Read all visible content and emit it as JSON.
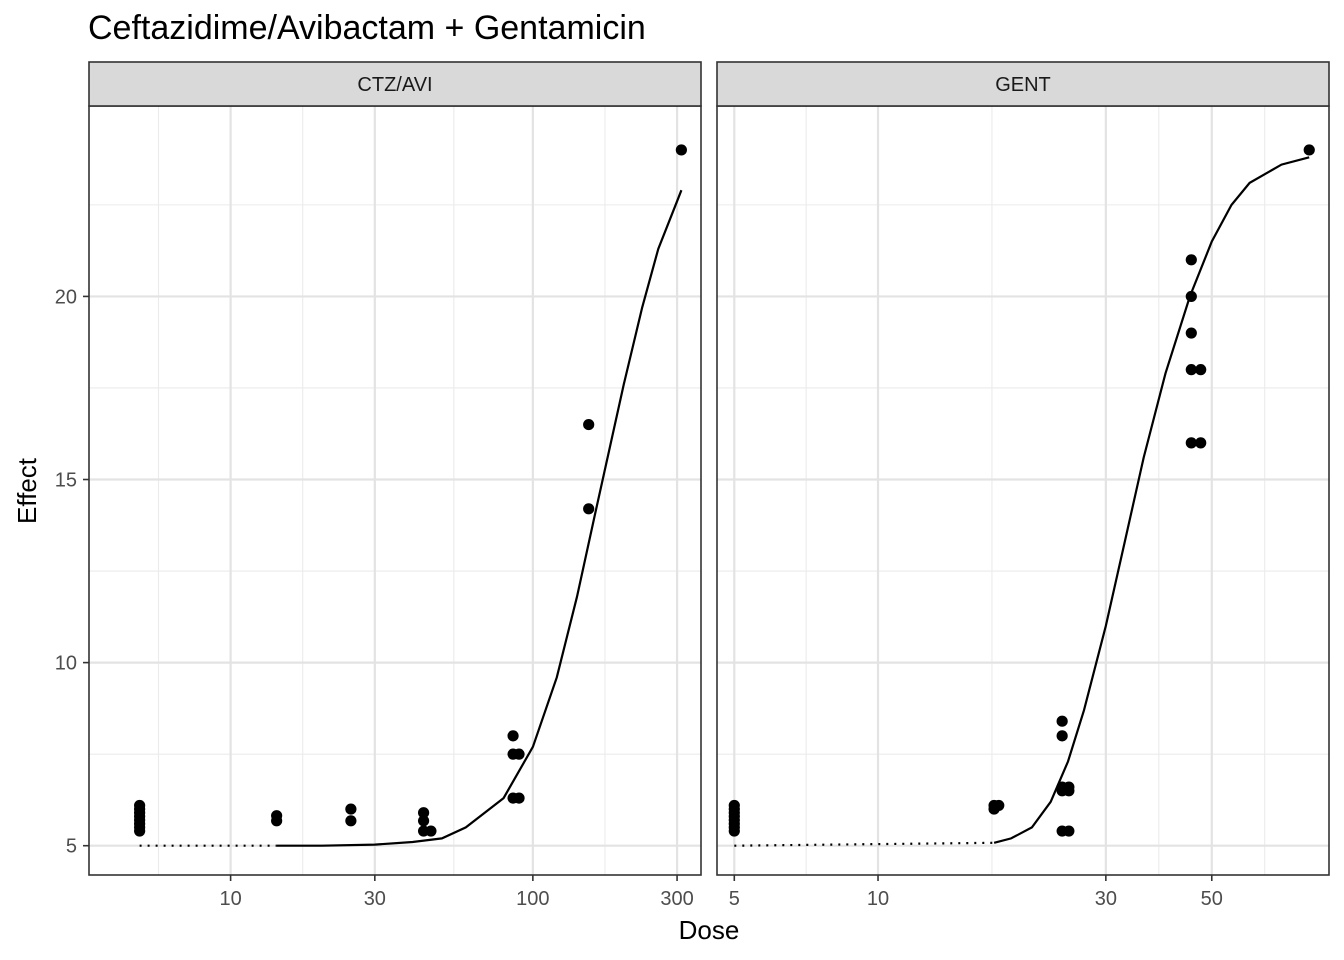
{
  "title": "Ceftazidime/Avibactam + Gentamicin",
  "xlabel": "Dose",
  "ylabel": "Effect",
  "chart_data": {
    "type": "scatter",
    "title": "Ceftazidime/Avibactam + Gentamicin",
    "xlabel": "Dose",
    "ylabel": "Effect",
    "x_scale": "log10",
    "ylim": [
      4.2,
      25.2
    ],
    "y_ticks": [
      5,
      10,
      15,
      20
    ],
    "grid": true,
    "facets": [
      {
        "name": "CTZ/AVI",
        "xlim": [
          3.4,
          360
        ],
        "x_ticks": [
          10,
          30,
          100,
          300
        ],
        "points": [
          [
            5,
            5.4
          ],
          [
            5,
            5.5
          ],
          [
            5,
            5.6
          ],
          [
            5,
            5.7
          ],
          [
            5,
            5.8
          ],
          [
            5,
            5.9
          ],
          [
            5,
            6.0
          ],
          [
            5,
            6.1
          ],
          [
            14.2,
            5.68
          ],
          [
            14.2,
            5.82
          ],
          [
            25,
            5.68
          ],
          [
            25,
            6.0
          ],
          [
            43.5,
            5.4
          ],
          [
            43.5,
            5.68
          ],
          [
            43.5,
            5.9
          ],
          [
            46,
            5.4
          ],
          [
            86,
            6.3
          ],
          [
            86,
            7.5
          ],
          [
            86,
            8.0
          ],
          [
            90,
            6.3
          ],
          [
            90,
            7.5
          ],
          [
            153,
            14.2
          ],
          [
            153,
            16.5
          ],
          [
            310,
            24.0
          ]
        ],
        "fit_dotted": [
          [
            5,
            5.0
          ],
          [
            14.2,
            5.0
          ]
        ],
        "fit_curve": [
          [
            14.2,
            5.0
          ],
          [
            20,
            5.0
          ],
          [
            30,
            5.03
          ],
          [
            40,
            5.1
          ],
          [
            50,
            5.2
          ],
          [
            60,
            5.5
          ],
          [
            80,
            6.3
          ],
          [
            100,
            7.7
          ],
          [
            120,
            9.6
          ],
          [
            140,
            11.8
          ],
          [
            160,
            14.0
          ],
          [
            180,
            15.9
          ],
          [
            200,
            17.6
          ],
          [
            230,
            19.7
          ],
          [
            260,
            21.3
          ],
          [
            300,
            22.6
          ],
          [
            310,
            22.9
          ]
        ]
      },
      {
        "name": "GENT",
        "xlim": [
          4.6,
          88
        ],
        "x_ticks": [
          5,
          10,
          30,
          50
        ],
        "points": [
          [
            5,
            5.4
          ],
          [
            5,
            5.5
          ],
          [
            5,
            5.6
          ],
          [
            5,
            5.7
          ],
          [
            5,
            5.8
          ],
          [
            5,
            5.9
          ],
          [
            5,
            6.0
          ],
          [
            5,
            6.1
          ],
          [
            17.5,
            6.0
          ],
          [
            17.5,
            6.1
          ],
          [
            17.9,
            6.1
          ],
          [
            24.3,
            5.4
          ],
          [
            24.3,
            6.5
          ],
          [
            24.3,
            6.6
          ],
          [
            24.3,
            8.0
          ],
          [
            24.3,
            8.4
          ],
          [
            25.1,
            5.4
          ],
          [
            25.1,
            6.5
          ],
          [
            25.1,
            6.6
          ],
          [
            45.3,
            16.0
          ],
          [
            45.3,
            18.0
          ],
          [
            45.3,
            19.0
          ],
          [
            45.3,
            20.0
          ],
          [
            45.3,
            21.0
          ],
          [
            47.4,
            16.0
          ],
          [
            47.4,
            18.0
          ],
          [
            80,
            24.0
          ]
        ],
        "fit_dotted": [
          [
            5,
            5.0
          ],
          [
            17.5,
            5.08
          ]
        ],
        "fit_curve": [
          [
            17.5,
            5.08
          ],
          [
            19,
            5.2
          ],
          [
            21,
            5.5
          ],
          [
            23,
            6.2
          ],
          [
            25,
            7.3
          ],
          [
            27,
            8.7
          ],
          [
            30,
            11.0
          ],
          [
            33,
            13.4
          ],
          [
            36,
            15.6
          ],
          [
            40,
            17.9
          ],
          [
            45,
            20.0
          ],
          [
            50,
            21.5
          ],
          [
            55,
            22.5
          ],
          [
            60,
            23.1
          ],
          [
            70,
            23.6
          ],
          [
            80,
            23.8
          ]
        ]
      }
    ]
  }
}
